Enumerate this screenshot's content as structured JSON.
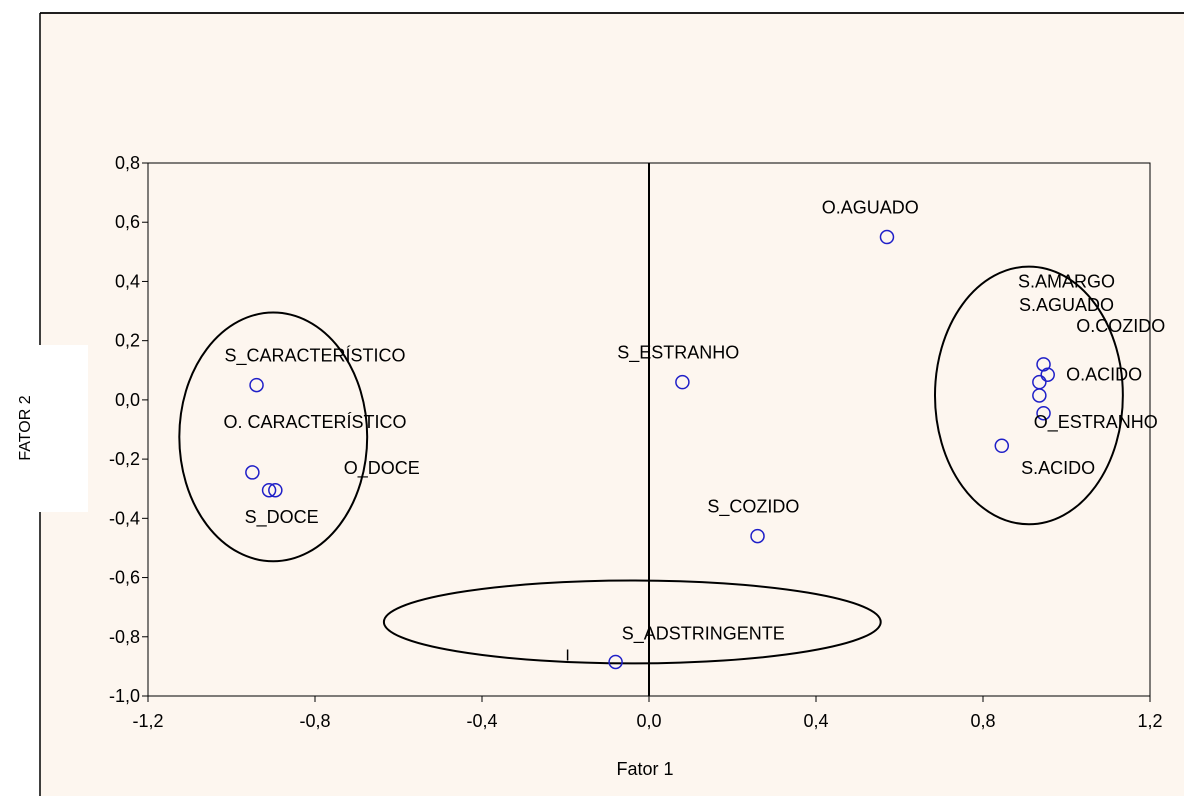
{
  "chart_data": {
    "type": "scatter",
    "title": "",
    "xlabel": "Fator 1",
    "ylabel": "FATOR 2",
    "xlim": [
      -1.2,
      1.2
    ],
    "ylim": [
      -1.0,
      0.8
    ],
    "x_ticks": [
      -1.2,
      -0.8,
      -0.4,
      0.0,
      0.4,
      0.8,
      1.2
    ],
    "x_tick_labels": [
      "-1,2",
      "-0,8",
      "-0,4",
      "0,0",
      "0,4",
      "0,8",
      "1,2"
    ],
    "y_ticks": [
      0.8,
      0.6,
      0.4,
      0.2,
      0.0,
      -0.2,
      -0.4,
      -0.6,
      -0.8,
      -1.0
    ],
    "y_tick_labels": [
      "0,8",
      "0,6",
      "0,4",
      "0,2",
      "0,0",
      "-0,2",
      "-0,4",
      "-0,6",
      "-0,8",
      "-1,0"
    ],
    "grid": true,
    "points": [
      {
        "x": 0.57,
        "y": 0.55
      },
      {
        "x": -0.94,
        "y": 0.05
      },
      {
        "x": 0.08,
        "y": 0.06
      },
      {
        "x": -0.95,
        "y": -0.245
      },
      {
        "x": -0.91,
        "y": -0.305
      },
      {
        "x": -0.895,
        "y": -0.305
      },
      {
        "x": 0.26,
        "y": -0.46
      },
      {
        "x": -0.08,
        "y": -0.885
      },
      {
        "x": 0.945,
        "y": 0.12
      },
      {
        "x": 0.955,
        "y": 0.085
      },
      {
        "x": 0.935,
        "y": 0.06
      },
      {
        "x": 0.935,
        "y": 0.015
      },
      {
        "x": 0.945,
        "y": -0.045
      },
      {
        "x": 0.845,
        "y": -0.155
      }
    ],
    "labels": [
      {
        "text": "O.AGUADO",
        "x": 0.53,
        "y": 0.63
      },
      {
        "text": "S_CARACTERÍSTICO",
        "x": -0.8,
        "y": 0.13
      },
      {
        "text": "O. CARACTERÍSTICO",
        "x": -0.8,
        "y": -0.095
      },
      {
        "text": "O_DOCE",
        "x": -0.64,
        "y": -0.25
      },
      {
        "text": "S_DOCE",
        "x": -0.88,
        "y": -0.415
      },
      {
        "text": "S_ESTRANHO",
        "x": 0.07,
        "y": 0.14
      },
      {
        "text": "S_COZIDO",
        "x": 0.25,
        "y": -0.38
      },
      {
        "text": "S_ADSTRINGENTE",
        "x": 0.13,
        "y": -0.81
      },
      {
        "text": "S.AMARGO",
        "x": 1.0,
        "y": 0.38
      },
      {
        "text": "S.AGUADO",
        "x": 1.0,
        "y": 0.3
      },
      {
        "text": "O.COZIDO",
        "x": 1.13,
        "y": 0.23
      },
      {
        "text": "O.ACIDO",
        "x": 1.09,
        "y": 0.065
      },
      {
        "text": "O_ESTRANHO",
        "x": 1.07,
        "y": -0.095
      },
      {
        "text": "S.ACIDO",
        "x": 0.98,
        "y": -0.25
      }
    ],
    "ellipses": [
      {
        "cx": -0.9,
        "cy": -0.125,
        "rx": 0.225,
        "ry": 0.42
      },
      {
        "cx": 0.91,
        "cy": 0.015,
        "rx": 0.225,
        "ry": 0.435
      },
      {
        "cx": -0.04,
        "cy": -0.75,
        "rx": 0.595,
        "ry": 0.14
      }
    ],
    "annotations": [
      "I"
    ],
    "annotation_positions": [
      {
        "x": -0.195,
        "y": -0.88
      }
    ]
  },
  "colors": {
    "background": "#fdf6ef",
    "marker": "#1f1fc8",
    "axis": "#000000",
    "grid": "#9a9a9a"
  }
}
